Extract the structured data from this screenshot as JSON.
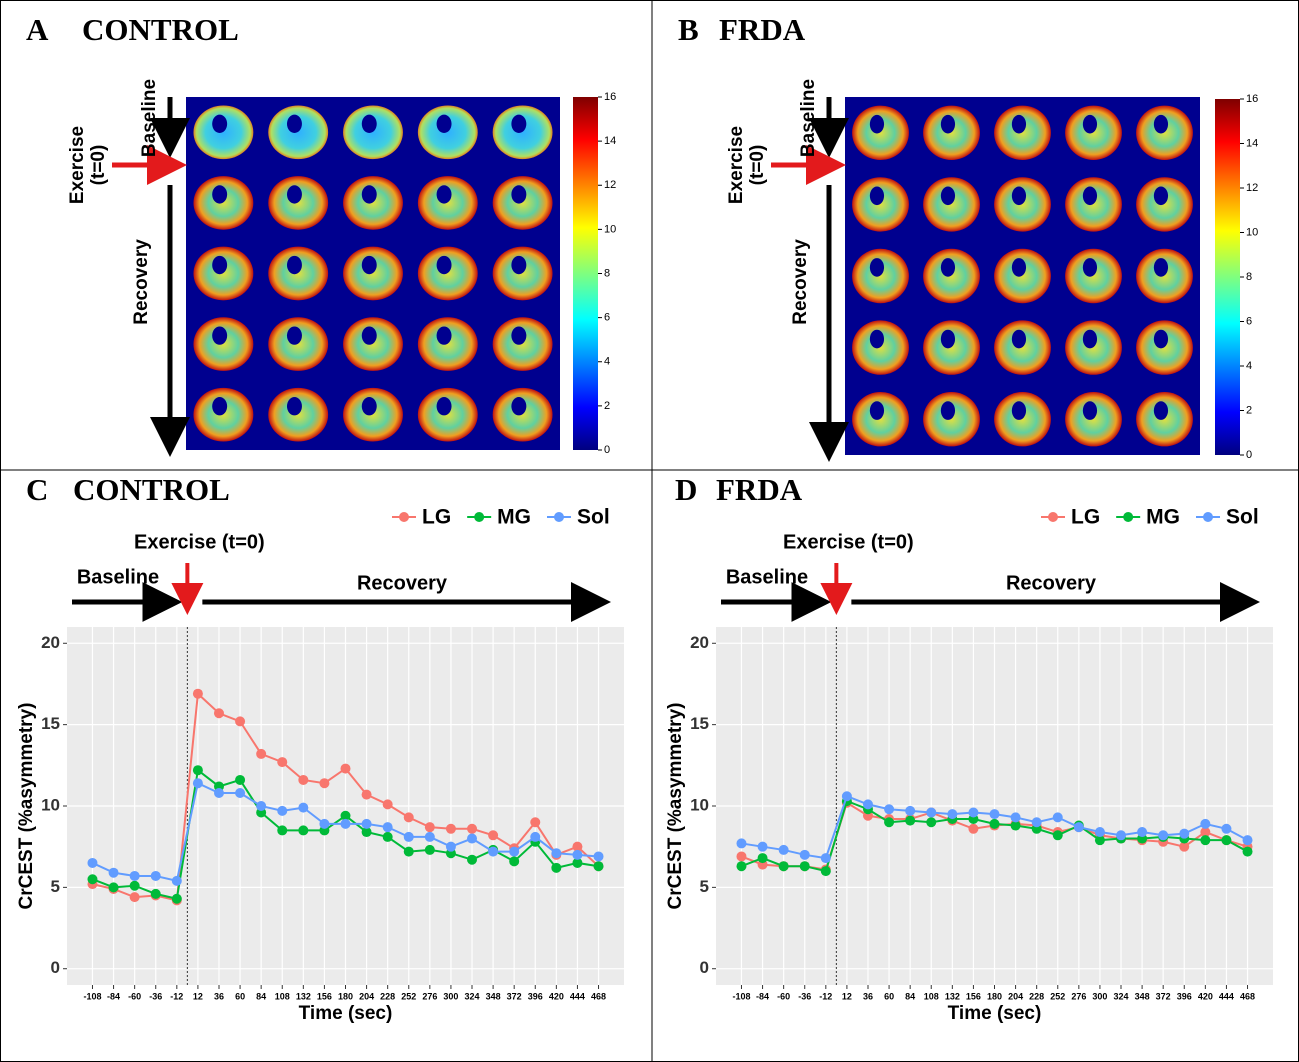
{
  "image_panels": [
    {
      "letter": "A",
      "title": "CONTROL",
      "exercise": "Exercise",
      "t0": "(t=0)",
      "baseline": "Baseline",
      "recovery": "Recovery",
      "colorbar_ticks": [
        0,
        2,
        4,
        6,
        8,
        10,
        12,
        14,
        16
      ]
    },
    {
      "letter": "B",
      "title": "FRDA",
      "exercise": "Exercise",
      "t0": "(t=0)",
      "baseline": "Baseline",
      "recovery": "Recovery",
      "colorbar_ticks": [
        0,
        2,
        4,
        6,
        8,
        10,
        12,
        14,
        16
      ]
    }
  ],
  "chart_data": [
    {
      "type": "line",
      "letter": "C",
      "title": "CONTROL",
      "exercise": "Exercise (t=0)",
      "baseline": "Baseline",
      "recovery": "Recovery",
      "x_label": "Time (sec)",
      "y_label": "CrCEST (%asymmetry)",
      "vline": 0,
      "x": [
        -108,
        -84,
        -60,
        -36,
        -12,
        12,
        36,
        60,
        84,
        108,
        132,
        156,
        180,
        204,
        228,
        252,
        276,
        300,
        324,
        348,
        372,
        396,
        420,
        444,
        468
      ],
      "xticks": [
        -108,
        -84,
        -60,
        -36,
        -12,
        12,
        36,
        60,
        84,
        108,
        132,
        156,
        180,
        204,
        228,
        252,
        276,
        300,
        324,
        348,
        372,
        396,
        420,
        444,
        468
      ],
      "xlim": [
        -137,
        497
      ],
      "ylim": [
        -1,
        21
      ],
      "yticks": [
        0,
        5,
        10,
        15,
        20
      ],
      "grid": true,
      "series": [
        {
          "name": "LG",
          "color": "#F8766D",
          "values": [
            5.2,
            4.9,
            4.4,
            4.5,
            4.2,
            16.9,
            15.7,
            15.2,
            13.2,
            12.7,
            11.6,
            11.4,
            12.3,
            10.7,
            10.1,
            9.3,
            8.7,
            8.6,
            8.6,
            8.2,
            7.4,
            9.0,
            7.0,
            7.5,
            6.3
          ]
        },
        {
          "name": "MG",
          "color": "#00BA38",
          "values": [
            5.5,
            5.0,
            5.1,
            4.6,
            4.3,
            12.2,
            11.2,
            11.6,
            9.6,
            8.5,
            8.5,
            8.5,
            9.4,
            8.4,
            8.1,
            7.2,
            7.3,
            7.1,
            6.7,
            7.3,
            6.6,
            7.8,
            6.2,
            6.5,
            6.3
          ]
        },
        {
          "name": "Sol",
          "color": "#619CFF",
          "values": [
            6.5,
            5.9,
            5.7,
            5.7,
            5.4,
            11.4,
            10.8,
            10.8,
            10.0,
            9.7,
            9.9,
            8.9,
            8.9,
            8.9,
            8.7,
            8.1,
            8.1,
            7.5,
            8.0,
            7.2,
            7.2,
            8.1,
            7.1,
            7.0,
            6.9
          ]
        }
      ]
    },
    {
      "type": "line",
      "letter": "D",
      "title": "FRDA",
      "exercise": "Exercise (t=0)",
      "baseline": "Baseline",
      "recovery": "Recovery",
      "x_label": "Time (sec)",
      "y_label": "CrCEST (%asymmetry)",
      "vline": 0,
      "x": [
        -108,
        -84,
        -60,
        -36,
        -12,
        12,
        36,
        60,
        84,
        108,
        132,
        156,
        180,
        204,
        228,
        252,
        276,
        300,
        324,
        348,
        372,
        396,
        420,
        444,
        468
      ],
      "xticks": [
        -108,
        -84,
        -60,
        -36,
        -12,
        12,
        36,
        60,
        84,
        108,
        132,
        156,
        180,
        204,
        228,
        252,
        276,
        300,
        324,
        348,
        372,
        396,
        420,
        444,
        468
      ],
      "xlim": [
        -137,
        497
      ],
      "ylim": [
        -1,
        21
      ],
      "yticks": [
        0,
        5,
        10,
        15,
        20
      ],
      "grid": true,
      "series": [
        {
          "name": "LG",
          "color": "#F8766D",
          "values": [
            6.9,
            6.4,
            6.3,
            6.3,
            6.1,
            10.2,
            9.4,
            9.2,
            9.2,
            9.6,
            9.1,
            8.6,
            8.8,
            8.9,
            8.8,
            8.4,
            8.7,
            8.2,
            8.0,
            7.9,
            7.8,
            7.5,
            8.4,
            7.9,
            7.5
          ]
        },
        {
          "name": "MG",
          "color": "#00BA38",
          "values": [
            6.3,
            6.8,
            6.3,
            6.3,
            6.0,
            10.3,
            9.8,
            9.0,
            9.1,
            9.0,
            9.2,
            9.2,
            8.9,
            8.8,
            8.6,
            8.2,
            8.8,
            7.9,
            8.0,
            8.0,
            8.1,
            8.0,
            7.9,
            7.9,
            7.2
          ]
        },
        {
          "name": "Sol",
          "color": "#619CFF",
          "values": [
            7.7,
            7.5,
            7.3,
            7.0,
            6.8,
            10.6,
            10.1,
            9.8,
            9.7,
            9.6,
            9.5,
            9.6,
            9.5,
            9.3,
            9.0,
            9.3,
            8.7,
            8.4,
            8.2,
            8.4,
            8.2,
            8.3,
            8.9,
            8.6,
            7.9
          ]
        }
      ]
    }
  ]
}
